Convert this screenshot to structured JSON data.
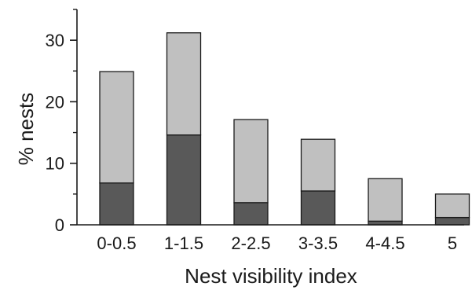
{
  "chart_data": {
    "type": "bar",
    "stacked": true,
    "categories": [
      "0-0.5",
      "1-1.5",
      "2-2.5",
      "3-3.5",
      "4-4.5",
      "5"
    ],
    "series": [
      {
        "values": [
          6.8,
          14.6,
          3.6,
          5.5,
          0.6,
          1.2
        ],
        "color": "#595959"
      },
      {
        "values": [
          18.1,
          16.6,
          13.5,
          8.4,
          6.9,
          3.8
        ],
        "color": "#c0c0c0"
      }
    ],
    "totals": [
      24.9,
      31.2,
      17.1,
      13.9,
      7.5,
      5.0
    ],
    "xlabel": "Nest visibility index",
    "ylabel": "% nests",
    "ylim": [
      0,
      35
    ],
    "yticks": [
      0,
      10,
      20,
      30
    ],
    "grid": false,
    "legend": "none"
  }
}
